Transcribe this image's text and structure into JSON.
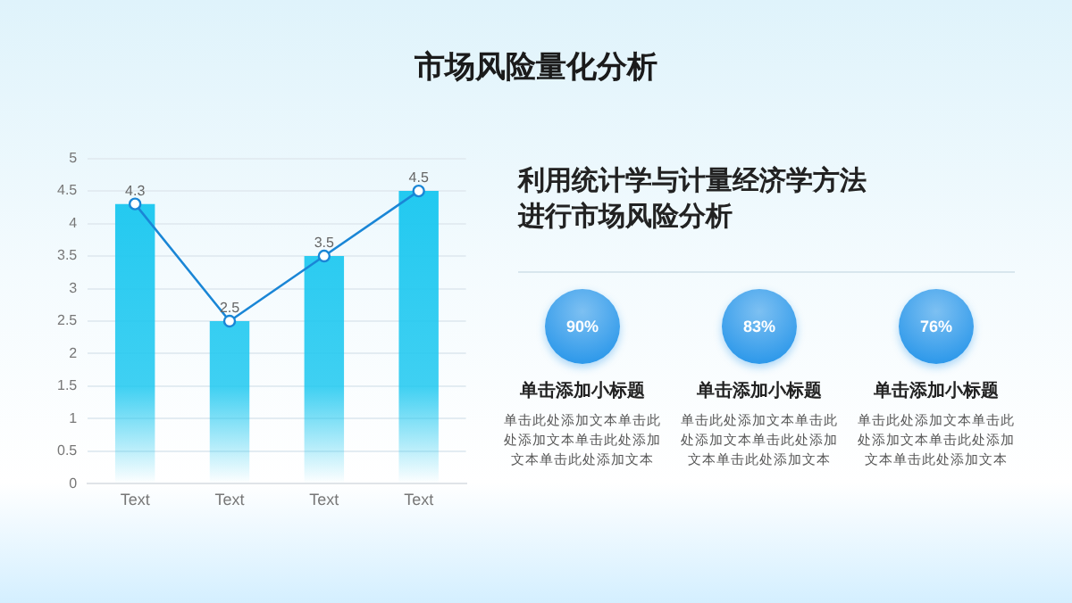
{
  "chart_data": [
    {
      "type": "bar",
      "title": "市场风险量化分析",
      "categories": [
        "Text",
        "Text",
        "Text",
        "Text"
      ],
      "series": [
        {
          "type": "bar",
          "color": "#1ec8f0",
          "values": [
            4.3,
            2.5,
            3.5,
            4.5
          ]
        },
        {
          "type": "line",
          "color": "#1a86d6",
          "values": [
            4.3,
            2.5,
            3.5,
            4.5
          ],
          "marker": "circle",
          "value_labels": [
            "4.3",
            "2.5",
            "3.5",
            "4.5"
          ]
        }
      ],
      "ylim": [
        0,
        5
      ],
      "yticks": [
        0,
        0.5,
        1,
        1.5,
        2,
        2.5,
        3,
        3.5,
        4,
        4.5,
        5
      ],
      "grid": "y"
    },
    {
      "type": "other",
      "title": "利用统计学与计量经济学方法进行市场风险分析",
      "categories": [
        "单击添加小标题",
        "单击添加小标题",
        "单击添加小标题"
      ],
      "color": "#1a8fe8",
      "annotations": [
        "90%",
        "单击此处添加文本单击此处添加文本单击此处添加文本单击此处添加文本",
        "83%",
        "单击此处添加文本单击此处添加文本单击此处添加文本单击此处添加文本",
        "76%",
        "单击此处添加文本单击此处添加文本单击此处添加文本单击此处添加文本"
      ]
    }
  ]
}
